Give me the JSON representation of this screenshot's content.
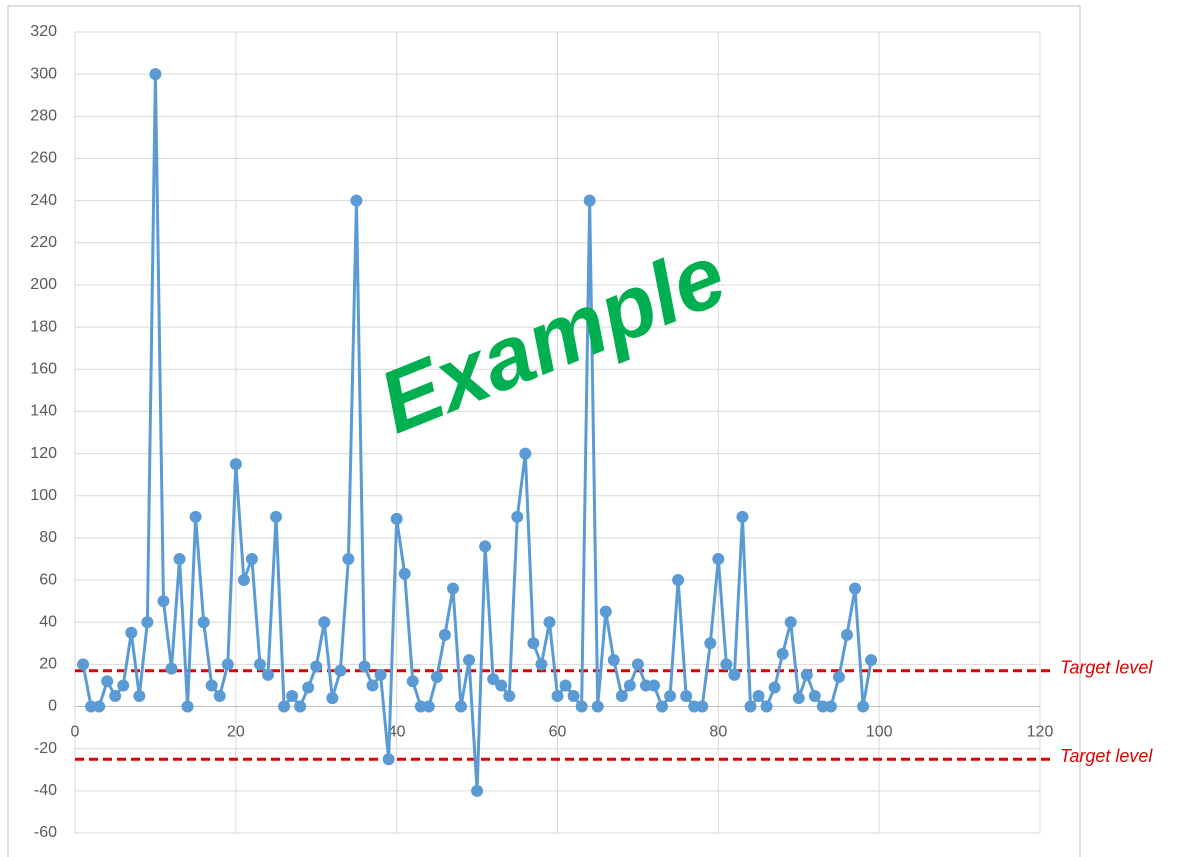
{
  "chart_data": {
    "type": "line",
    "x": [
      1,
      2,
      3,
      4,
      5,
      6,
      7,
      8,
      9,
      10,
      11,
      12,
      13,
      14,
      15,
      16,
      17,
      18,
      19,
      20,
      21,
      22,
      23,
      24,
      25,
      26,
      27,
      28,
      29,
      30,
      31,
      32,
      33,
      34,
      35,
      36,
      37,
      38,
      39,
      40,
      41,
      42,
      43,
      44,
      45,
      46,
      47,
      48,
      49,
      50,
      51,
      52,
      53,
      54,
      55,
      56,
      57,
      58,
      59,
      60,
      61,
      62,
      63,
      64,
      65,
      66,
      67,
      68,
      69,
      70,
      71,
      72,
      73,
      74,
      75,
      76,
      77,
      78,
      79,
      80,
      81,
      82,
      83,
      84,
      85,
      86,
      87,
      88,
      89,
      90,
      91,
      92,
      93,
      94,
      95,
      96,
      97,
      98,
      99
    ],
    "values": [
      20,
      0,
      0,
      12,
      5,
      10,
      35,
      5,
      40,
      300,
      50,
      18,
      70,
      0,
      90,
      40,
      10,
      5,
      20,
      115,
      60,
      70,
      20,
      15,
      90,
      0,
      5,
      0,
      9,
      19,
      40,
      4,
      17,
      70,
      240,
      19,
      10,
      15,
      -25,
      89,
      63,
      12,
      0,
      0,
      14,
      34,
      56,
      0,
      22,
      -40,
      76,
      13,
      10,
      5,
      90,
      120,
      30,
      20,
      40,
      5,
      10,
      5,
      0,
      240,
      0,
      45,
      22,
      5,
      10,
      20,
      10,
      10,
      0,
      5,
      60,
      5,
      0,
      0,
      30,
      70,
      20,
      15,
      90,
      0,
      5,
      0,
      9,
      25,
      40,
      4,
      15,
      5,
      0,
      0,
      14,
      34,
      56,
      0,
      22
    ],
    "color": "#5b9bd5",
    "xlim": [
      0,
      120
    ],
    "xticks": [
      0,
      20,
      40,
      60,
      80,
      100,
      120
    ],
    "ylim": [
      -60,
      320
    ],
    "yticks": [
      -60,
      -40,
      -20,
      0,
      20,
      40,
      60,
      80,
      100,
      120,
      140,
      160,
      180,
      200,
      220,
      240,
      260,
      280,
      300,
      320
    ],
    "grid": true,
    "reference_lines": [
      {
        "value": 17,
        "label": "Target level"
      },
      {
        "value": -25,
        "label": "Target level"
      }
    ],
    "reference_color": "#e00000",
    "annotation": {
      "text": "Example",
      "color": "#00b050"
    }
  }
}
